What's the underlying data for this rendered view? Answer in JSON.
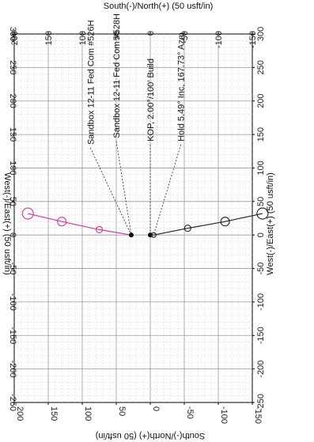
{
  "chart_data": {
    "type": "scatter",
    "axes": {
      "top": {
        "label": "South(-)/North(+) (50 usft/in)",
        "ticks": [
          "200",
          "150",
          "100",
          "50",
          "0",
          "-50",
          "-100",
          "-150"
        ]
      },
      "bottom": {
        "label": "South(-)/North(+) (50 usft/in)",
        "ticks": [
          "200",
          "150",
          "100",
          "50",
          "0",
          "-50",
          "-100",
          "-150"
        ]
      },
      "left": {
        "label": "West(-)/East(+) (50 usft/in)",
        "ticks": [
          "300",
          "250",
          "200",
          "150",
          "100",
          "50",
          "0",
          "-50",
          "-100",
          "-150",
          "-200",
          "-250"
        ]
      },
      "right": {
        "label": "West(-)/East(+) (50 usft/in)",
        "ticks": [
          "300",
          "250",
          "200",
          "150",
          "100",
          "50",
          "0",
          "-50",
          "-100",
          "-150",
          "-200",
          "-250"
        ]
      },
      "horizontal_range": [
        200,
        -150
      ],
      "vertical_range": [
        300,
        -250
      ]
    },
    "grid": true,
    "series": [
      {
        "name": "Sandbox 12-11 Fed Com #526H",
        "color": "#cc3b9a",
        "x": [
          28,
          75,
          130,
          180
        ],
        "y": [
          0,
          8,
          20,
          32
        ],
        "marker_r": [
          2.5,
          4,
          5.5,
          7
        ]
      },
      {
        "name": "Sandbox 12-11 Fed Com #528H",
        "color": "#222222",
        "x": [
          0,
          -5,
          -55,
          -110,
          -165
        ],
        "y": [
          0,
          0,
          10,
          20,
          32
        ],
        "marker_r": [
          2.5,
          3,
          4,
          5.5,
          7
        ]
      }
    ],
    "annotations": [
      {
        "id": "label-526h",
        "text": "Sandbox 12-11 Fed Com #526H",
        "x": 88,
        "y": 130,
        "target_x": 28,
        "target_y": 0
      },
      {
        "id": "label-528h",
        "text": "Sandbox 12-11 Fed Com #528H",
        "x": 50,
        "y": 140,
        "target_x": 28,
        "target_y": 0
      },
      {
        "id": "label-kop",
        "text": "KOP, 2.00°/100' Build",
        "x": 0,
        "y": 135,
        "target_x": 0,
        "target_y": 0
      },
      {
        "id": "label-hold",
        "text": "Hold 5.49° Inc, 167.73° Azm",
        "x": -45,
        "y": 135,
        "target_x": -5,
        "target_y": 0
      }
    ]
  }
}
